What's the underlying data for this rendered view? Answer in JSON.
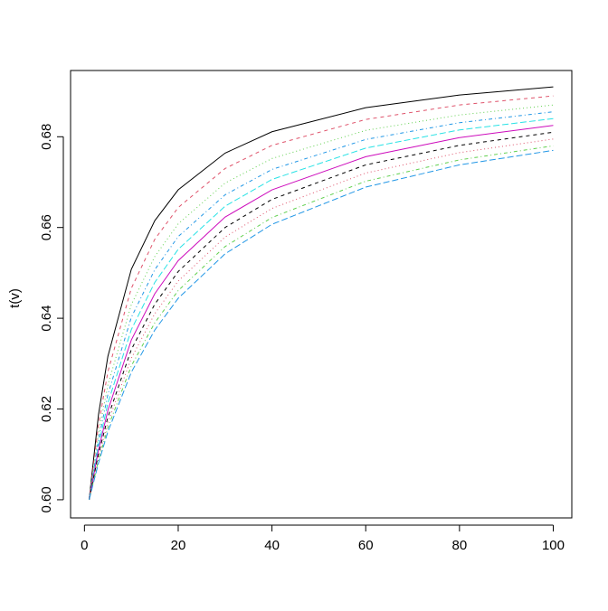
{
  "chart_data": {
    "type": "line",
    "ylabel": "t(v)",
    "x": [
      1,
      3,
      5,
      10,
      15,
      20,
      30,
      40,
      60,
      80,
      100
    ],
    "series": [
      {
        "color": "#000000",
        "dash": "solid",
        "values": [
          0.6,
          0.6188,
          0.6316,
          0.6508,
          0.6615,
          0.6683,
          0.6764,
          0.6811,
          0.6864,
          0.6892,
          0.691
        ]
      },
      {
        "color": "#DF536B",
        "dash": "dashed",
        "values": [
          0.6,
          0.6165,
          0.6282,
          0.6466,
          0.6574,
          0.6644,
          0.673,
          0.6781,
          0.6838,
          0.687,
          0.689
        ]
      },
      {
        "color": "#61D04F",
        "dash": "dotted",
        "values": [
          0.6,
          0.6146,
          0.6253,
          0.643,
          0.6536,
          0.6608,
          0.6698,
          0.6752,
          0.6814,
          0.6848,
          0.687
        ]
      },
      {
        "color": "#2297E6",
        "dash": "dotdash",
        "values": [
          0.6,
          0.6132,
          0.6232,
          0.6402,
          0.6507,
          0.658,
          0.6672,
          0.6728,
          0.6794,
          0.6831,
          0.6855
        ]
      },
      {
        "color": "#28E2E5",
        "dash": "longdash",
        "values": [
          0.6,
          0.612,
          0.6213,
          0.6375,
          0.6479,
          0.6552,
          0.6647,
          0.6706,
          0.6775,
          0.6815,
          0.684
        ]
      },
      {
        "color": "#CD0BBC",
        "dash": "solid",
        "values": [
          0.6,
          0.611,
          0.6197,
          0.6352,
          0.6454,
          0.6527,
          0.6623,
          0.6683,
          0.6756,
          0.6798,
          0.6825
        ]
      },
      {
        "color": "#000000",
        "dash": "dashed",
        "values": [
          0.6,
          0.6101,
          0.6182,
          0.6331,
          0.6431,
          0.6503,
          0.66,
          0.6662,
          0.6738,
          0.6781,
          0.681
        ]
      },
      {
        "color": "#DF536B",
        "dash": "dotted",
        "values": [
          0.6,
          0.6094,
          0.617,
          0.6312,
          0.641,
          0.6482,
          0.6579,
          0.6642,
          0.672,
          0.6765,
          0.6795
        ]
      },
      {
        "color": "#61D04F",
        "dash": "dotdash",
        "values": [
          0.6,
          0.6087,
          0.6159,
          0.6295,
          0.639,
          0.6461,
          0.6558,
          0.6622,
          0.6702,
          0.6749,
          0.678
        ]
      },
      {
        "color": "#2297E6",
        "dash": "longdash",
        "values": [
          0.6,
          0.6081,
          0.615,
          0.6281,
          0.6374,
          0.6444,
          0.6542,
          0.6607,
          0.6689,
          0.6738,
          0.677
        ]
      }
    ],
    "xlim": [
      -2.96,
      103.96
    ],
    "xticks": [
      0,
      20,
      40,
      60,
      80,
      100
    ],
    "ylim": [
      0.596,
      0.6946
    ],
    "yticks": [
      {
        "value": 0.6,
        "label": "0.60"
      },
      0.62,
      0.64,
      0.66,
      0.68
    ],
    "grid": false
  }
}
